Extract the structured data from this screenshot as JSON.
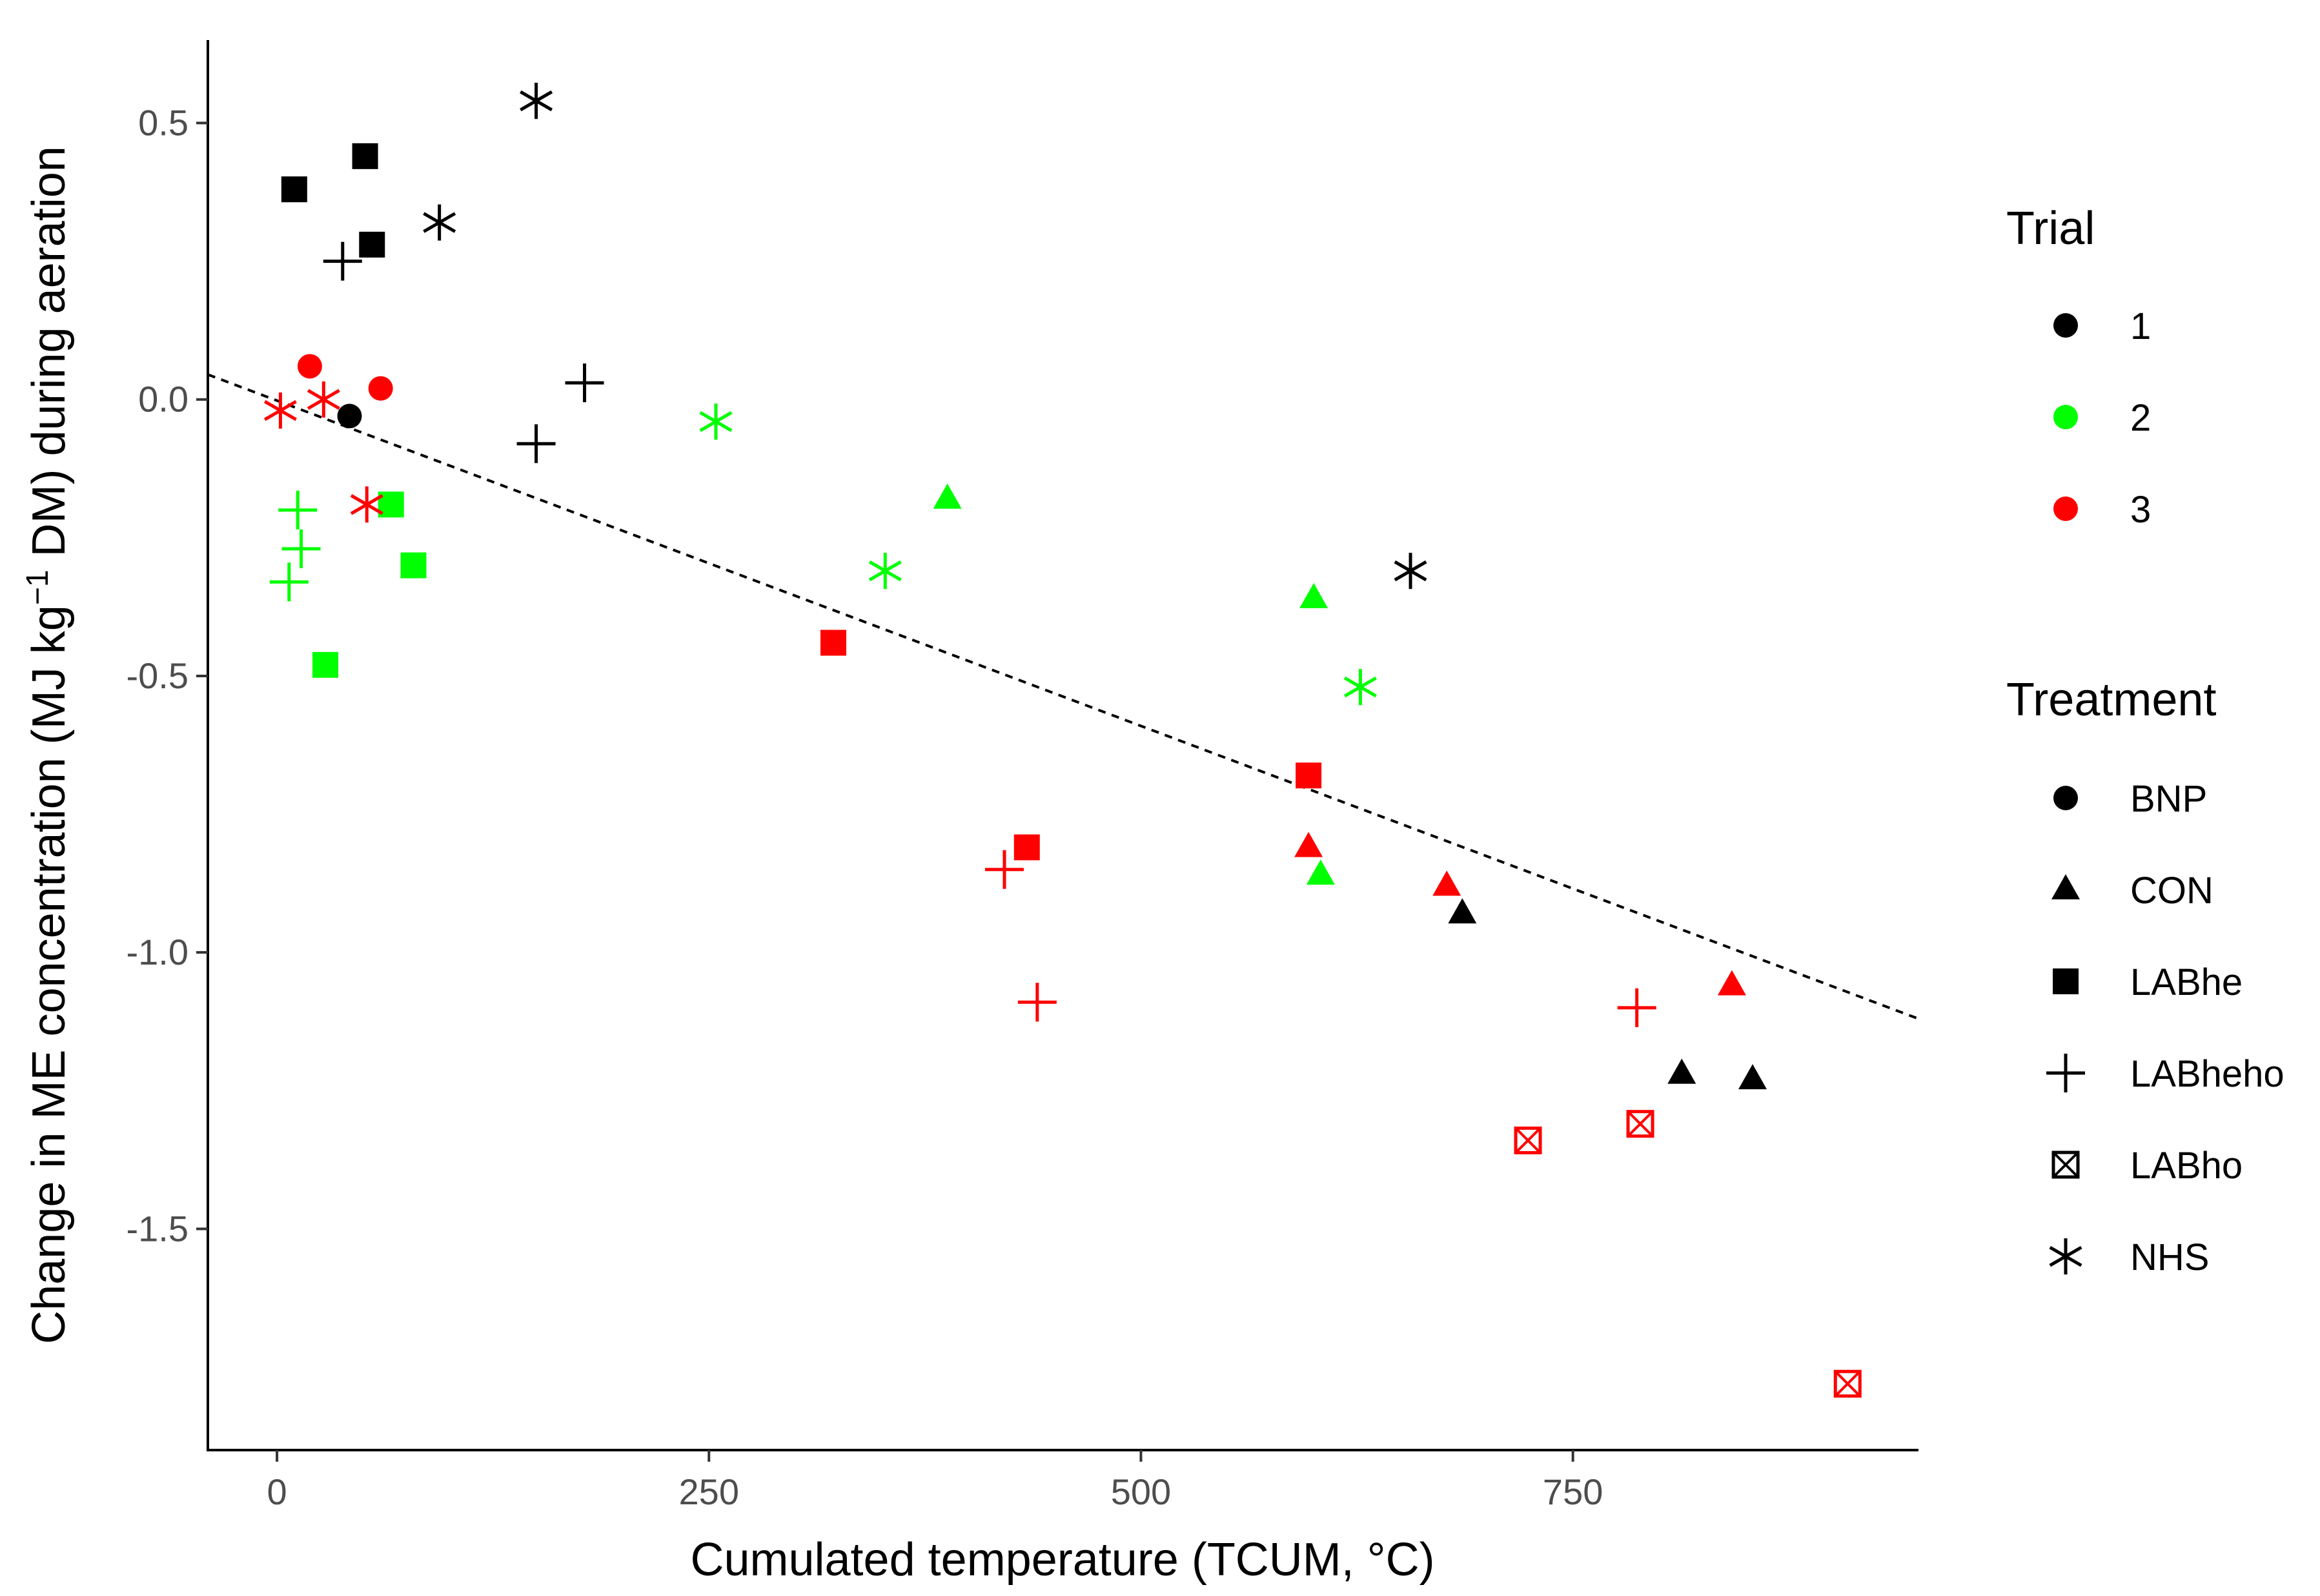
{
  "chart_data": {
    "type": "scatter",
    "title": "",
    "xlabel": "Cumulated temperature (TCUM,  °C)",
    "ylabel_parts": {
      "before": "Change in ME concentration (MJ kg",
      "superscript": "−1",
      "after": " DM) during aeration"
    },
    "xlim": [
      -40,
      950
    ],
    "ylim": [
      -1.9,
      0.65
    ],
    "x_ticks": [
      0,
      250,
      500,
      750
    ],
    "x_tick_labels": [
      "0",
      "250",
      "500",
      "750"
    ],
    "y_ticks": [
      0.5,
      0.0,
      -0.5,
      -1.0,
      -1.5
    ],
    "y_tick_labels": [
      "0.5",
      "0.0",
      "-0.5",
      "-1.0",
      "-1.5"
    ],
    "grid": false,
    "trendline": {
      "style": "dashed",
      "x": [
        -40,
        950
      ],
      "y": [
        0.045,
        -1.12
      ]
    },
    "colors": {
      "1": "#000000",
      "2": "#00ff00",
      "3": "#ff0000"
    },
    "legend": {
      "placement": "right",
      "trial": {
        "title": "Trial",
        "entries": [
          "1",
          "2",
          "3"
        ]
      },
      "treatment": {
        "title": "Treatment",
        "entries": [
          {
            "label": "BNP",
            "shape": "circle"
          },
          {
            "label": "CON",
            "shape": "triangle"
          },
          {
            "label": "LABhe",
            "shape": "square"
          },
          {
            "label": "LABheho",
            "shape": "plus"
          },
          {
            "label": "LABho",
            "shape": "boxx"
          },
          {
            "label": "NHS",
            "shape": "star"
          }
        ]
      }
    },
    "points": [
      {
        "x": 10,
        "y": 0.38,
        "trial": "1",
        "treatment": "LABhe"
      },
      {
        "x": 51,
        "y": 0.44,
        "trial": "1",
        "treatment": "LABhe"
      },
      {
        "x": 55,
        "y": 0.28,
        "trial": "1",
        "treatment": "LABhe"
      },
      {
        "x": 38,
        "y": 0.25,
        "trial": "1",
        "treatment": "LABheho"
      },
      {
        "x": 150,
        "y": -0.08,
        "trial": "1",
        "treatment": "LABheho"
      },
      {
        "x": 178,
        "y": 0.03,
        "trial": "1",
        "treatment": "LABheho"
      },
      {
        "x": 150,
        "y": 0.54,
        "trial": "1",
        "treatment": "NHS"
      },
      {
        "x": 94,
        "y": 0.32,
        "trial": "1",
        "treatment": "NHS"
      },
      {
        "x": 656,
        "y": -0.31,
        "trial": "1",
        "treatment": "NHS"
      },
      {
        "x": 42,
        "y": -0.03,
        "trial": "1",
        "treatment": "BNP"
      },
      {
        "x": 686,
        "y": -0.93,
        "trial": "1",
        "treatment": "CON"
      },
      {
        "x": 813,
        "y": -1.22,
        "trial": "1",
        "treatment": "CON"
      },
      {
        "x": 854,
        "y": -1.23,
        "trial": "1",
        "treatment": "CON"
      },
      {
        "x": 12,
        "y": -0.2,
        "trial": "2",
        "treatment": "LABheho"
      },
      {
        "x": 14,
        "y": -0.27,
        "trial": "2",
        "treatment": "LABheho"
      },
      {
        "x": 7,
        "y": -0.33,
        "trial": "2",
        "treatment": "LABheho"
      },
      {
        "x": 66,
        "y": -0.19,
        "trial": "2",
        "treatment": "LABhe"
      },
      {
        "x": 79,
        "y": -0.3,
        "trial": "2",
        "treatment": "LABhe"
      },
      {
        "x": 28,
        "y": -0.48,
        "trial": "2",
        "treatment": "LABhe"
      },
      {
        "x": 254,
        "y": -0.04,
        "trial": "2",
        "treatment": "NHS"
      },
      {
        "x": 352,
        "y": -0.31,
        "trial": "2",
        "treatment": "NHS"
      },
      {
        "x": 627,
        "y": -0.52,
        "trial": "2",
        "treatment": "NHS"
      },
      {
        "x": 388,
        "y": -0.18,
        "trial": "2",
        "treatment": "CON"
      },
      {
        "x": 600,
        "y": -0.36,
        "trial": "2",
        "treatment": "CON"
      },
      {
        "x": 604,
        "y": -0.86,
        "trial": "2",
        "treatment": "CON"
      },
      {
        "x": 19,
        "y": 0.06,
        "trial": "3",
        "treatment": "BNP"
      },
      {
        "x": 60,
        "y": 0.02,
        "trial": "3",
        "treatment": "BNP"
      },
      {
        "x": 2,
        "y": -0.02,
        "trial": "3",
        "treatment": "NHS"
      },
      {
        "x": 27,
        "y": 0.0,
        "trial": "3",
        "treatment": "NHS"
      },
      {
        "x": 52,
        "y": -0.19,
        "trial": "3",
        "treatment": "NHS"
      },
      {
        "x": 322,
        "y": -0.44,
        "trial": "3",
        "treatment": "LABhe"
      },
      {
        "x": 434,
        "y": -0.81,
        "trial": "3",
        "treatment": "LABhe"
      },
      {
        "x": 597,
        "y": -0.68,
        "trial": "3",
        "treatment": "LABhe"
      },
      {
        "x": 421,
        "y": -0.85,
        "trial": "3",
        "treatment": "LABheho"
      },
      {
        "x": 440,
        "y": -1.09,
        "trial": "3",
        "treatment": "LABheho"
      },
      {
        "x": 787,
        "y": -1.1,
        "trial": "3",
        "treatment": "LABheho"
      },
      {
        "x": 597,
        "y": -0.81,
        "trial": "3",
        "treatment": "CON"
      },
      {
        "x": 677,
        "y": -0.88,
        "trial": "3",
        "treatment": "CON"
      },
      {
        "x": 842,
        "y": -1.06,
        "trial": "3",
        "treatment": "CON"
      },
      {
        "x": 724,
        "y": -1.34,
        "trial": "3",
        "treatment": "LABho"
      },
      {
        "x": 789,
        "y": -1.31,
        "trial": "3",
        "treatment": "LABho"
      },
      {
        "x": 909,
        "y": -1.78,
        "trial": "3",
        "treatment": "LABho"
      }
    ]
  }
}
